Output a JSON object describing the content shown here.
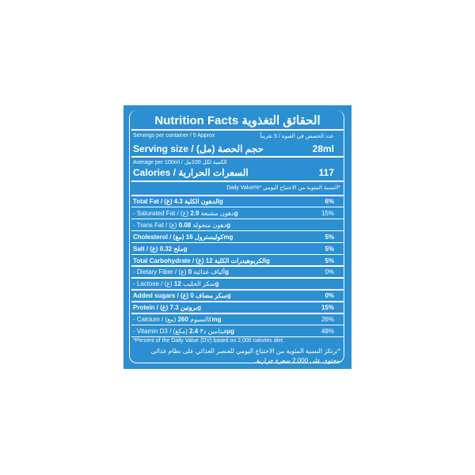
{
  "title": "Nutrition Facts  الحقائق التغذوية",
  "servings": {
    "en": "Servings per container / 5 Approx",
    "ar": "عدد الحصص في العبوة / 5 تقريباً"
  },
  "serving_size": {
    "label": "Serving size / (مل) حجم الحصة",
    "value": "28ml"
  },
  "average": "Average per 100ml / الكمية لكل 100مل",
  "calories": {
    "label": "Calories / السعرات الحرارية",
    "value": "117"
  },
  "daily_value_header": "Daily Value%*  النسبة المئوية من الاحتياج اليومي*",
  "rows": [
    {
      "label": "Total Fat / (غ) الدهون الكلية",
      "amount": "4.3g",
      "dv": "6%",
      "bold": true
    },
    {
      "label": "- Saturated Fat / (غ) دهون مشبعة",
      "amount": "2.9g",
      "dv": "15%",
      "bold": false
    },
    {
      "label": "- Trans Fat / (غ) دهون متحولة",
      "amount": "0.08g",
      "dv": "",
      "bold": false
    },
    {
      "label": "Cholesterol / (مغ) كوليسترول",
      "amount": "16mg",
      "dv": "5%",
      "bold": true
    },
    {
      "label": "Salt / (غ) ملح",
      "amount": "0.32g",
      "dv": "5%",
      "bold": true
    },
    {
      "label": "Total Carbohydrate / (غ) الكربوهيدرات الكلية",
      "amount": "12g",
      "dv": "5%",
      "bold": true
    },
    {
      "label": "- Dietary Fiber / (غ) ألياف غذائية",
      "amount": "0g",
      "dv": "0%",
      "bold": false
    },
    {
      "label": "- Lactose / (غ) سكر الحليب",
      "amount": "12g",
      "dv": "",
      "bold": false
    },
    {
      "label": "Added sugars / (غ) سكر مضاف",
      "amount": "0g",
      "dv": "0%",
      "bold": true
    },
    {
      "label": "Protein / (غ) بروتين",
      "amount": "7.3g",
      "dv": "15%",
      "bold": true
    },
    {
      "label": "- Calcium / (مغ) كالسيوم",
      "amount": "260mg",
      "dv": "26%",
      "bold": false
    },
    {
      "label": "- Vitamin D3 / (مكغ) فيتامين د٣",
      "amount": "2.4µg",
      "dv": "48%",
      "bold": false
    }
  ],
  "footnote_en": "*Percent of the Daily Value (DV) based on 2,000 calories diet.",
  "footnote_ar": "*ترتكز النسبة المئوية من الاحتياج اليومي للعنصر الغذائي على نظام غذائي محتوي على 2,000 سعرة حرارية.",
  "colors": {
    "panel": "#2b8fd1",
    "text": "#ffffff"
  }
}
